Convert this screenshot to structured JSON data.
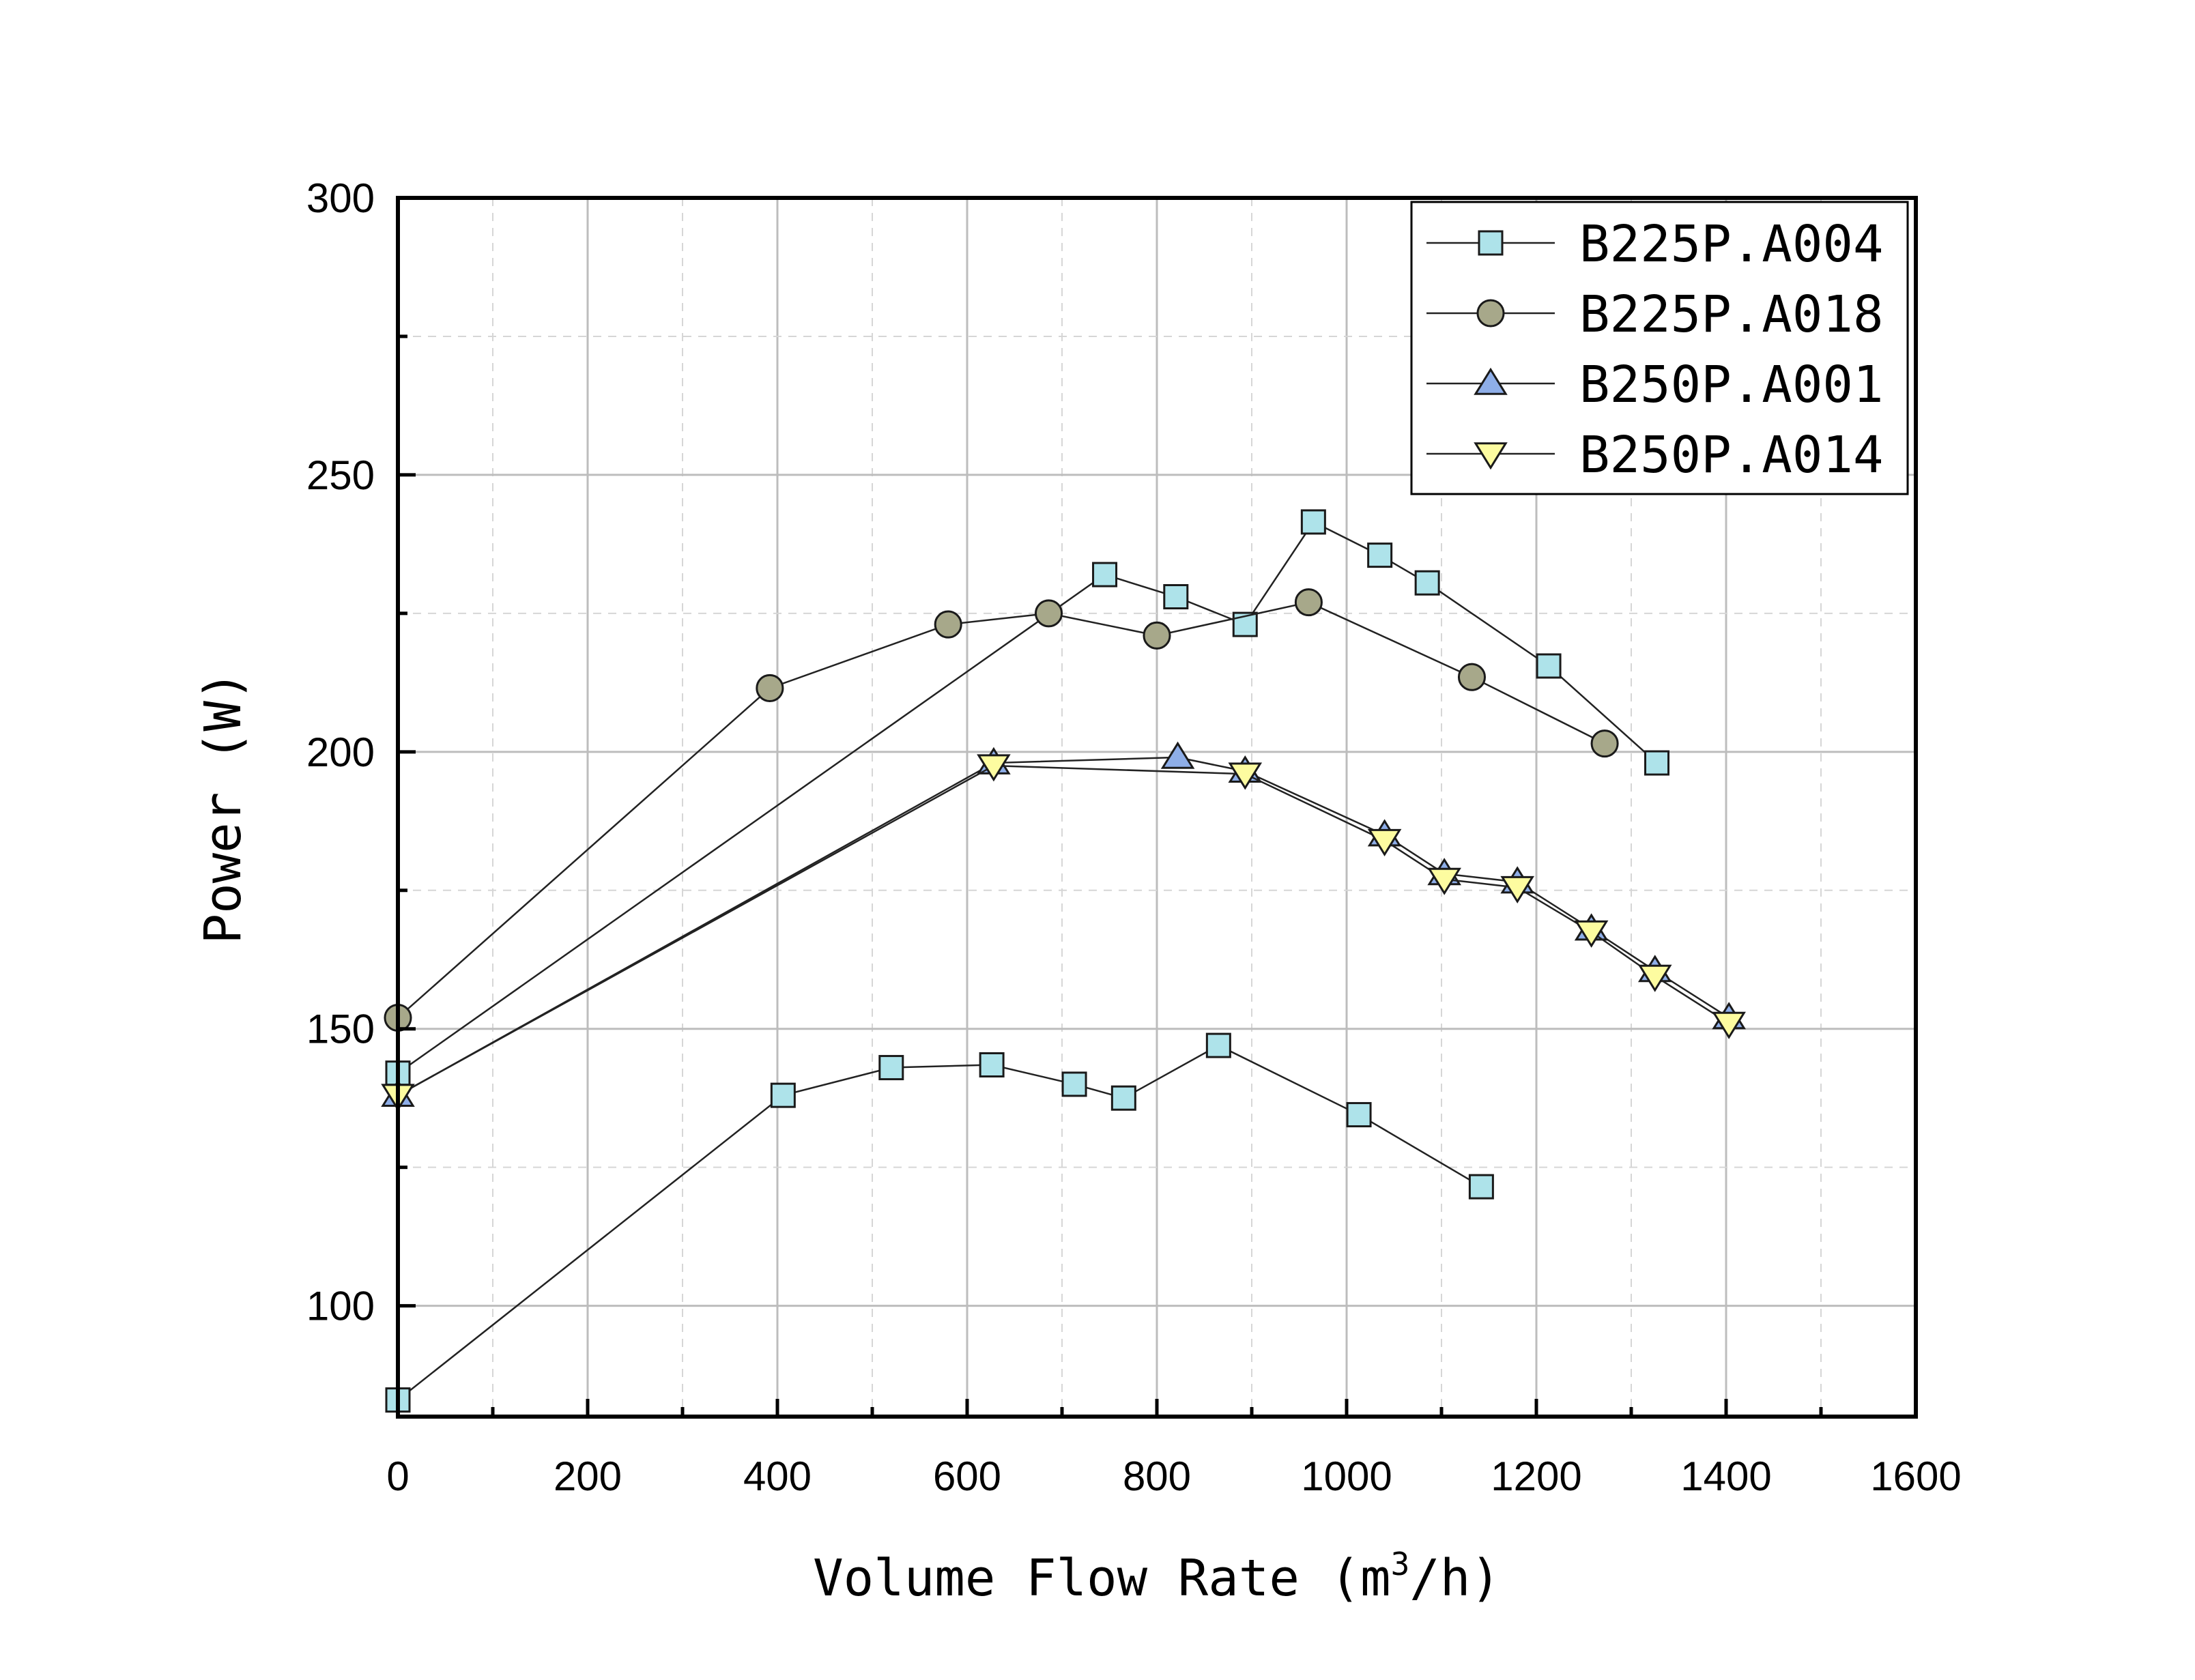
{
  "chart_data": {
    "type": "line",
    "title": "",
    "xlabel_main": "Volume Flow Rate (m",
    "xlabel_sup": "3",
    "xlabel_tail": "/h)",
    "ylabel": "Power (W)",
    "xlim": [
      0,
      1600
    ],
    "ylim": [
      80,
      300
    ],
    "xticks": [
      0,
      200,
      400,
      600,
      800,
      1000,
      1200,
      1400,
      1600
    ],
    "xtick_labels": [
      "0",
      "200",
      "400",
      "600",
      "800",
      "1000",
      "1200",
      "1400",
      "1600"
    ],
    "yticks": [
      100,
      150,
      200,
      250,
      300
    ],
    "ytick_labels": [
      "100",
      "150",
      "200",
      "250",
      "300"
    ],
    "grid": true,
    "legend_position": "top-right",
    "series": [
      {
        "name": "B225P.A004",
        "marker": "square",
        "color": "#aee3ea",
        "points": [
          [
            0,
            142
          ],
          [
            745,
            232
          ],
          [
            820,
            228
          ],
          [
            893,
            223
          ],
          [
            965,
            241.5
          ],
          [
            1035,
            235.5
          ],
          [
            1085,
            230.5
          ],
          [
            1213,
            215.5
          ],
          [
            1327,
            198
          ]
        ]
      },
      {
        "name": "B225P.A004",
        "marker": "square",
        "color": "#aee3ea",
        "legend": false,
        "points": [
          [
            0,
            83
          ],
          [
            406,
            138
          ],
          [
            520,
            143
          ],
          [
            626,
            143.5
          ],
          [
            713,
            140
          ],
          [
            765,
            137.5
          ],
          [
            865,
            147
          ],
          [
            1013,
            134.5
          ],
          [
            1142,
            121.5
          ]
        ]
      },
      {
        "name": "B225P.A018",
        "marker": "circle",
        "color": "#a7a88a",
        "points": [
          [
            0,
            152
          ],
          [
            392,
            211.5
          ],
          [
            580,
            223
          ],
          [
            686,
            225
          ],
          [
            800,
            221
          ],
          [
            960,
            227
          ],
          [
            1132,
            213.5
          ],
          [
            1272,
            201.5
          ]
        ]
      },
      {
        "name": "B250P.A001",
        "marker": "triangle-up",
        "color": "#8eaee8",
        "points": [
          [
            0,
            138
          ],
          [
            628,
            198
          ],
          [
            822,
            199
          ],
          [
            893,
            196.5
          ],
          [
            1040,
            185
          ],
          [
            1103,
            178
          ],
          [
            1180,
            176.5
          ],
          [
            1258,
            168
          ],
          [
            1325,
            160.5
          ],
          [
            1403,
            152
          ]
        ]
      },
      {
        "name": "B250P.A014",
        "marker": "triangle-down",
        "color": "#fdfca0",
        "points": [
          [
            0,
            138
          ],
          [
            628,
            197.5
          ],
          [
            893,
            196
          ],
          [
            1040,
            184
          ],
          [
            1103,
            177
          ],
          [
            1180,
            175.5
          ],
          [
            1258,
            167.5
          ],
          [
            1325,
            159.5
          ],
          [
            1403,
            151
          ]
        ]
      }
    ]
  }
}
